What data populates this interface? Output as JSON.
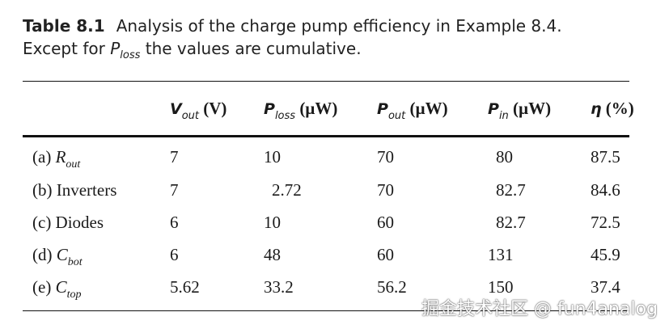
{
  "caption": {
    "label": "Table 8.1",
    "line1": "Analysis of the charge pump efficiency in Example 8.4.",
    "line2_pre": "Except for ",
    "line2_sym": "P",
    "line2_sub": "loss",
    "line2_post": " the values are cumulative."
  },
  "headers": [
    {
      "sym": "V",
      "sub": "out",
      "unit": " (V)"
    },
    {
      "sym": "P",
      "sub": "loss",
      "unit": " (µW)"
    },
    {
      "sym": "P",
      "sub": "out",
      "unit": " (µW)"
    },
    {
      "sym": "P",
      "sub": "in",
      "unit": " (µW)"
    },
    {
      "sym": "η",
      "sub": "",
      "unit": " (%)"
    }
  ],
  "rows": [
    {
      "prefix": "(a) ",
      "sym": "R",
      "sub": "out",
      "values": [
        "7",
        "10",
        "70",
        "80",
        "87.5"
      ]
    },
    {
      "prefix": "(b) Inverters",
      "sym": "",
      "sub": "",
      "values": [
        "7",
        "2.72",
        "70",
        "82.7",
        "84.6"
      ]
    },
    {
      "prefix": "(c) Diodes",
      "sym": "",
      "sub": "",
      "values": [
        "6",
        "10",
        "60",
        "82.7",
        "72.5"
      ]
    },
    {
      "prefix": "(d) ",
      "sym": "C",
      "sub": "bot",
      "values": [
        "6",
        "48",
        "60",
        "131",
        "45.9"
      ]
    },
    {
      "prefix": "(e) ",
      "sym": "C",
      "sub": "top",
      "values": [
        "5.62",
        "33.2",
        "56.2",
        "150",
        "37.4"
      ]
    }
  ],
  "watermark": "掘金技术社区 @ fun4analog"
}
